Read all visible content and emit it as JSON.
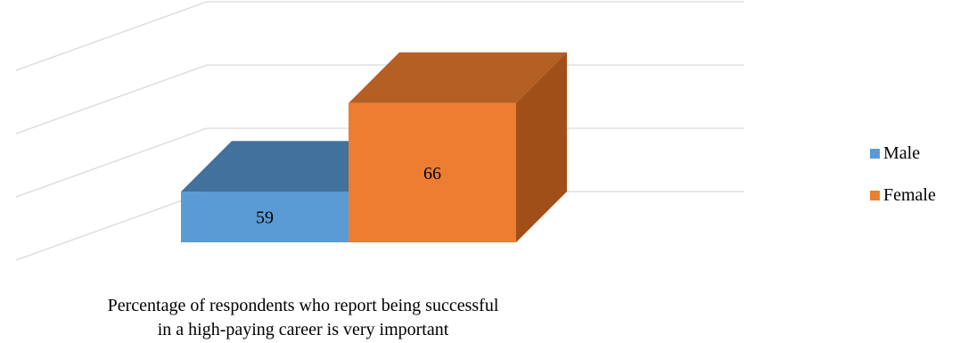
{
  "chart_data": {
    "type": "bar",
    "style": "3d-clustered",
    "categories": [
      "Percentage of respondents who report being successful in a high-paying career is very important"
    ],
    "series": [
      {
        "name": "Male",
        "values": [
          59
        ],
        "color": "#5b9bd5",
        "top_color": "#41719c",
        "side_color": "#3e6e99"
      },
      {
        "name": "Female",
        "values": [
          66
        ],
        "color": "#ed7d31",
        "top_color": "#b45f24",
        "side_color": "#a14f19"
      }
    ],
    "ylim": [
      55,
      70
    ],
    "grid": true,
    "legend": "right",
    "caption_lines": [
      "Percentage of respondents who report being successful",
      "in a high-paying career is very important"
    ]
  }
}
